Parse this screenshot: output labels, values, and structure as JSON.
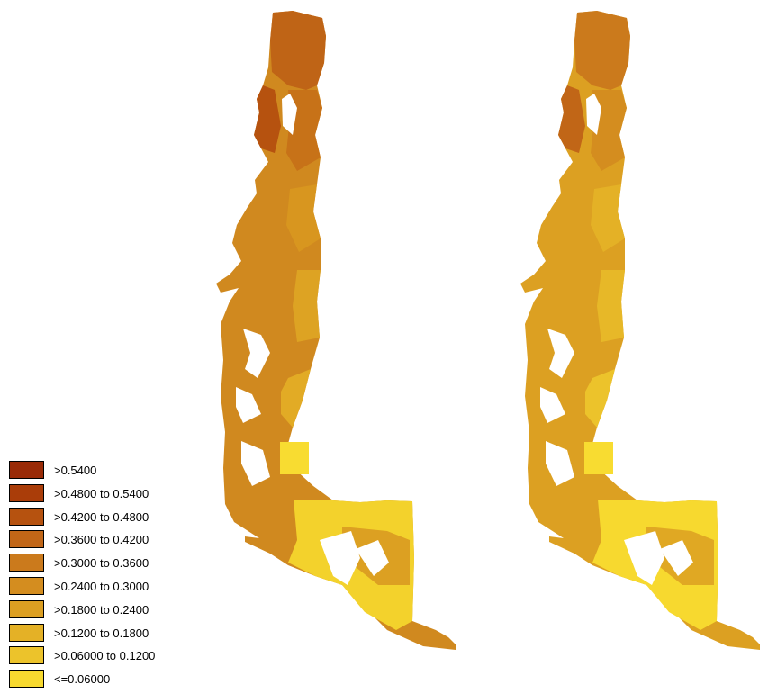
{
  "legend": {
    "items": [
      {
        "label": ">0.5400",
        "color": "#9a2b07"
      },
      {
        "label": ">0.4800 to 0.5400",
        "color": "#aa3d09"
      },
      {
        "label": ">0.4200 to 0.4800",
        "color": "#b6520f"
      },
      {
        "label": ">0.3600 to 0.4200",
        "color": "#c16617"
      },
      {
        "label": ">0.3000 to 0.3600",
        "color": "#cb7a1c"
      },
      {
        "label": ">0.2400 to 0.3000",
        "color": "#d48d1f"
      },
      {
        "label": ">0.1800 to 0.2400",
        "color": "#dc9f22"
      },
      {
        "label": ">0.1200 to 0.1800",
        "color": "#e4b126"
      },
      {
        "label": ">0.06000 to 0.1200",
        "color": "#ecc32b"
      },
      {
        "label": "<=0.06000",
        "color": "#f7d92f"
      }
    ]
  },
  "maps": {
    "left": {
      "dominant_class": ">0.2400 to 0.3000",
      "northern_class": ">0.3600 to 0.4200"
    },
    "right": {
      "dominant_class": ">0.1800 to 0.2400",
      "northern_class": ">0.3000 to 0.3600"
    }
  }
}
